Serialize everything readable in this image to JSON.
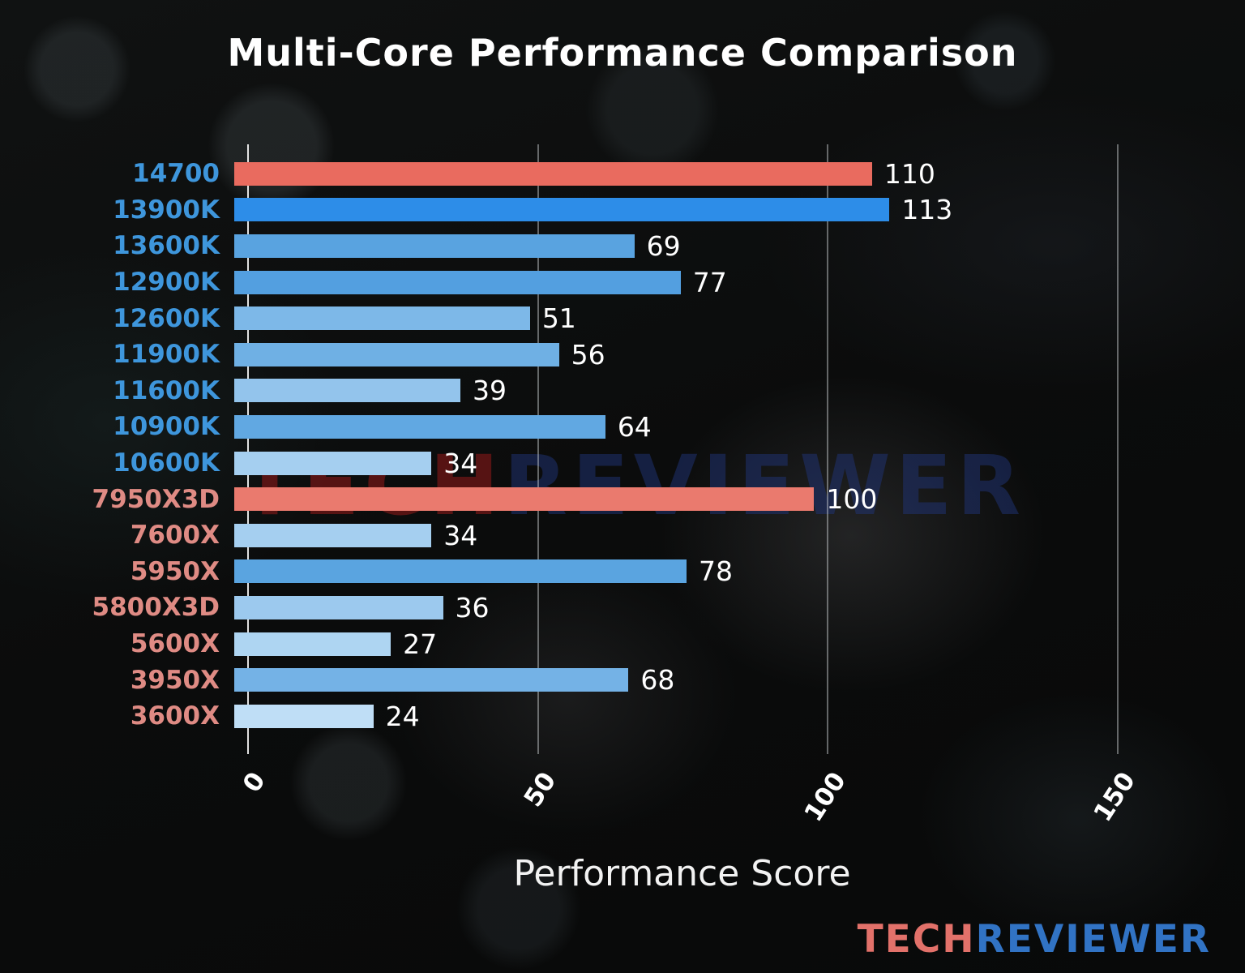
{
  "page": {
    "watermark": {
      "tech": "TECH",
      "reviewer": "REVIEWER"
    },
    "logo": {
      "tech": "TECH",
      "reviewer": "REVIEWER",
      "tech_color": "#e2716a",
      "reviewer_color": "#3173c4"
    }
  },
  "chart_data": {
    "type": "bar",
    "orientation": "horizontal",
    "title": "Multi-Core Performance Comparison",
    "xlabel": "Performance Score",
    "xlim": [
      0,
      150
    ],
    "xticks": [
      0,
      50,
      100,
      150
    ],
    "grid": true,
    "categories": [
      "14700",
      "13900K",
      "13600K",
      "12900K",
      "12600K",
      "11900K",
      "11600K",
      "10900K",
      "10600K",
      "7950X3D",
      "7600X",
      "5950X",
      "5800X3D",
      "5600X",
      "3950X",
      "3600X"
    ],
    "values": [
      110,
      113,
      69,
      77,
      51,
      56,
      39,
      64,
      34,
      100,
      34,
      78,
      36,
      27,
      68,
      24
    ],
    "bar_colors": [
      "#e96b5f",
      "#2d8de8",
      "#59a3e0",
      "#539fe0",
      "#7db8e8",
      "#6fb0e4",
      "#93c4ec",
      "#61a8e2",
      "#a5cff0",
      "#ea7a6e",
      "#a5cff0",
      "#5aa4e0",
      "#9cc9ee",
      "#aed5f2",
      "#74b2e6",
      "#bfdef6"
    ],
    "label_colors": [
      "#3e96dc",
      "#3e96dc",
      "#3e96dc",
      "#3e96dc",
      "#3e96dc",
      "#3e96dc",
      "#3e96dc",
      "#3e96dc",
      "#3e96dc",
      "#df8b84",
      "#df8b84",
      "#df8b84",
      "#df8b84",
      "#df8b84",
      "#df8b84",
      "#df8b84"
    ],
    "value_label_color": "#ffffff"
  }
}
